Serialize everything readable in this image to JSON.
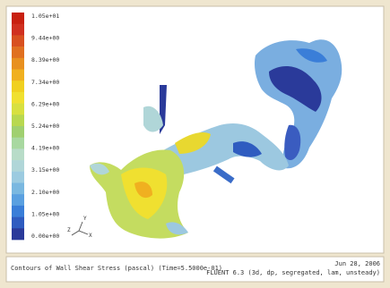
{
  "colorbar": {
    "labels": [
      "1.05e+01",
      "9.44e+00",
      "8.39e+00",
      "7.34e+00",
      "6.29e+00",
      "5.24e+00",
      "4.19e+00",
      "3.15e+00",
      "2.10e+00",
      "1.05e+00",
      "0.00e+00"
    ]
  },
  "axes": {
    "labels": [
      "Y",
      "X",
      "Z"
    ]
  },
  "footer": {
    "title": "Contours of Wall Shear Stress (pascal)  (Time=5.5000e-01)",
    "date": "Jun 28, 2006",
    "solver": "FLUENT 6.3 (3d, dp, segregated, lam, unsteady)"
  }
}
